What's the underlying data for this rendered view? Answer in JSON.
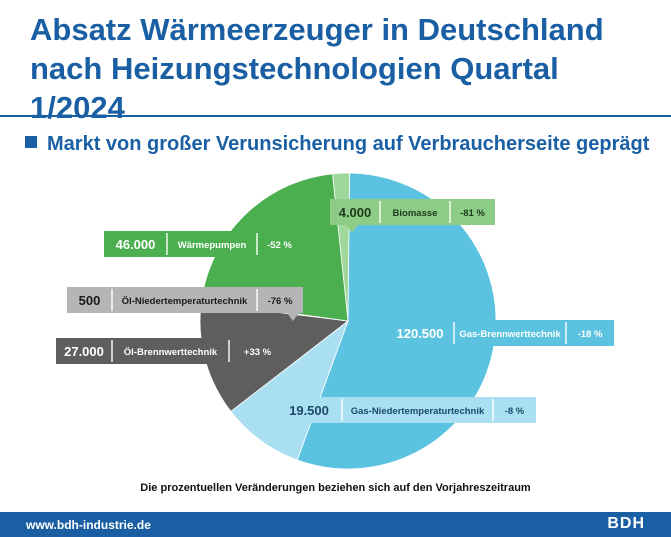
{
  "title_line1": "Absatz Wärmeerzeuger in Deutschland",
  "title_line2": "nach Heizungstechnologien Quartal 1/2024",
  "subtitle": "Markt von großer Verunsicherung auf Verbraucherseite geprägt",
  "footnote": "Die prozentuellen Veränderungen beziehen sich auf den Vorjahreszeitraum",
  "footer": {
    "url": "www.bdh-industrie.de",
    "brand": "BDH"
  },
  "chart_data": {
    "type": "pie",
    "title": "Absatz Wärmeerzeuger in Deutschland nach Heizungstechnologien Quartal 1/2024",
    "slices": [
      {
        "label": "Biomasse",
        "value": 4000,
        "value_label": "4.000",
        "change": "-81 %",
        "color": "#9fd89a"
      },
      {
        "label": "Gas-Brennwerttechnik",
        "value": 120500,
        "value_label": "120.500",
        "change": "-18 %",
        "color": "#5bc3e0"
      },
      {
        "label": "Gas-Niedertemperaturtechnik",
        "value": 19500,
        "value_label": "19.500",
        "change": "-8 %",
        "color": "#a9dff0"
      },
      {
        "label": "Öl-Brennwerttechnik",
        "value": 27000,
        "value_label": "27.000",
        "change": "+33 %",
        "color": "#5e5e5e"
      },
      {
        "label": "Öl-Niedertemperaturtechnik",
        "value": 500,
        "value_label": "500",
        "change": "-76 %",
        "color": "#b5b5b5"
      },
      {
        "label": "Wärmepumpen",
        "value": 46000,
        "value_label": "46.000",
        "change": "-52 %",
        "color": "#4caf4f"
      }
    ]
  }
}
